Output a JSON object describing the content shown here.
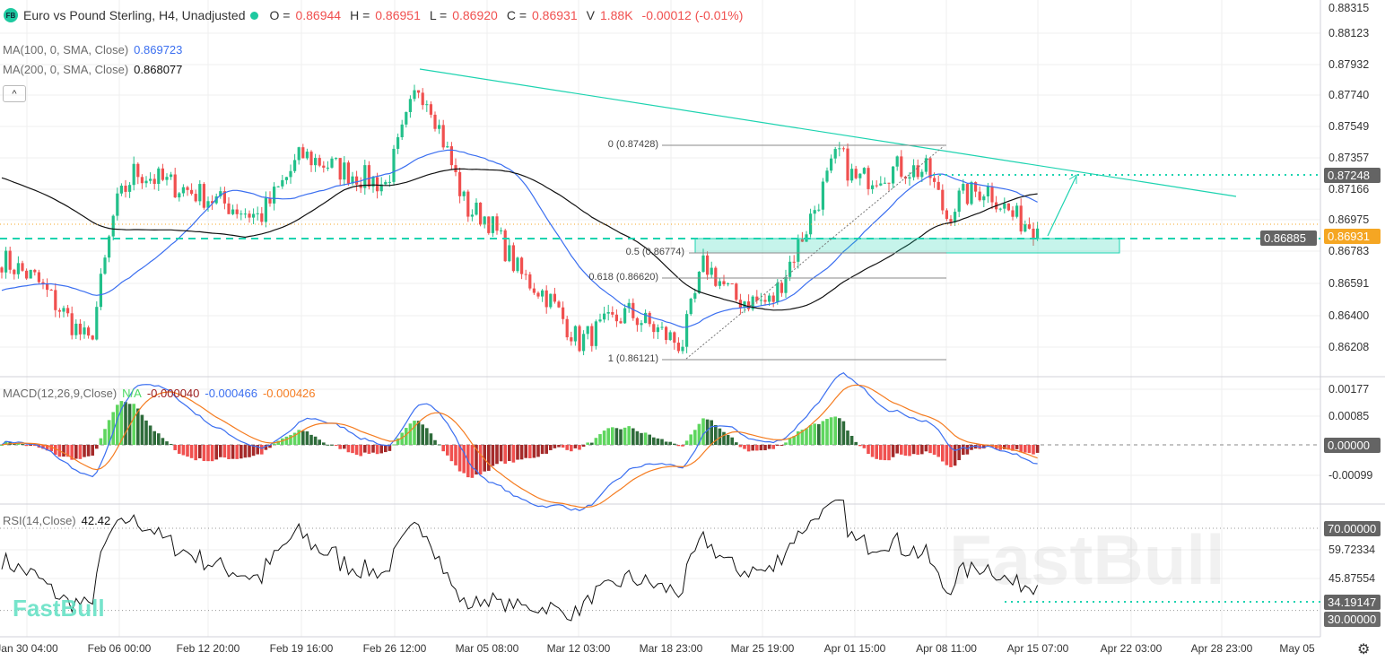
{
  "header": {
    "logo": "FB",
    "title": "Euro vs Pound Sterling, H4, Unadjusted",
    "o_label": "O =",
    "o": "0.86944",
    "h_label": "H =",
    "h": "0.86951",
    "l_label": "L =",
    "l": "0.86920",
    "c_label": "C =",
    "c": "0.86931",
    "v_label": "V",
    "v": "1.88K",
    "change": "-0.00012 (-0.01%)"
  },
  "ma100": {
    "label": "MA(100, 0, SMA, Close)",
    "value": "0.869723",
    "color": "#3b6ff0"
  },
  "ma200": {
    "label": "MA(200, 0, SMA, Close)",
    "value": "0.868077",
    "color": "#111111"
  },
  "collapse_icon": "chevron-up-icon",
  "macd": {
    "label": "MACD(12,26,9,Close)",
    "na": "N/A",
    "hist": "-0.000040",
    "macd": "-0.000466",
    "signal": "-0.000426"
  },
  "rsi": {
    "label": "RSI(14,Close)",
    "value": "42.42"
  },
  "price_axis": [
    "0.88315",
    "0.88123",
    "0.87932",
    "0.87740",
    "0.87549",
    "0.87357",
    "0.87166",
    "0.86975",
    "0.86783",
    "0.86591",
    "0.86400",
    "0.86208"
  ],
  "price_tags": {
    "target": "0.87248",
    "current": "0.86931",
    "level": "0.86885"
  },
  "macd_axis": [
    "0.00177",
    "0.00085",
    "0.00000",
    "-0.00099"
  ],
  "rsi_axis": [
    "70.00000",
    "59.72334",
    "45.87554",
    "34.19147",
    "30.00000"
  ],
  "time_axis": [
    "Jan 30 04:00",
    "Feb 06 00:00",
    "Feb 12 20:00",
    "Feb 19 16:00",
    "Feb 26 12:00",
    "Mar 05 08:00",
    "Mar 12 03:00",
    "Mar 18 23:00",
    "Mar 25 19:00",
    "Apr 01 15:00",
    "Apr 08 11:00",
    "Apr 15 07:00",
    "Apr 22 03:00",
    "Apr 28 23:00",
    "May 05"
  ],
  "fib": [
    {
      "label": "0 (0.87428)"
    },
    {
      "label": "0.5 (0.86774)"
    },
    {
      "label": "0.618 (0.86620)"
    },
    {
      "label": "1 (0.86121)"
    }
  ],
  "watermark": "FastBull",
  "colors": {
    "up": "#22c08a",
    "down": "#f0504f",
    "accent": "#1dd3b0",
    "current": "#f5a623",
    "macd": "#3b6ff0",
    "signal": "#f57c20"
  },
  "chart_data": {
    "type": "candlestick",
    "title": "Euro vs Pound Sterling, H4, Unadjusted",
    "ylim": [
      0.8605,
      0.8835
    ],
    "key_closes": [
      [
        "Jan 30 04:00",
        0.8675
      ],
      [
        "Feb 02",
        0.8662
      ],
      [
        "Feb 04",
        0.8622
      ],
      [
        "Feb 06 00:00",
        0.8705
      ],
      [
        "Feb 07",
        0.8728
      ],
      [
        "Feb 12 20:00",
        0.8712
      ],
      [
        "Feb 16",
        0.87
      ],
      [
        "Feb 19 16:00",
        0.8738
      ],
      [
        "Feb 23",
        0.8725
      ],
      [
        "Feb 25",
        0.872
      ],
      [
        "Feb 26 12:00",
        0.878
      ],
      [
        "Feb 27",
        0.877
      ],
      [
        "Mar 03",
        0.8705
      ],
      [
        "Mar 05 08:00",
        0.87
      ],
      [
        "Mar 07",
        0.8665
      ],
      [
        "Mar 10",
        0.8652
      ],
      [
        "Mar 12 03:00",
        0.8624
      ],
      [
        "Mar 14",
        0.8642
      ],
      [
        "Mar 18 23:00",
        0.8622
      ],
      [
        "Mar 19",
        0.8672
      ],
      [
        "Mar 21",
        0.865
      ],
      [
        "Mar 25 19:00",
        0.8648
      ],
      [
        "Mar 27",
        0.8695
      ],
      [
        "Mar 31",
        0.874
      ],
      [
        "Apr 01 15:00",
        0.8722
      ],
      [
        "Apr 04",
        0.873
      ],
      [
        "Apr 07",
        0.8728
      ],
      [
        "Apr 08 11:00",
        0.87
      ],
      [
        "Apr 09",
        0.8712
      ],
      [
        "Apr 11",
        0.8718
      ],
      [
        "Apr 14",
        0.87
      ],
      [
        "Apr 15 07:00",
        0.86931
      ]
    ],
    "fib_levels": [
      {
        "ratio": 0,
        "price": 0.87428
      },
      {
        "ratio": 0.5,
        "price": 0.86774
      },
      {
        "ratio": 0.618,
        "price": 0.8662
      },
      {
        "ratio": 1,
        "price": 0.86121
      }
    ],
    "horizontal_levels": [
      0.87248,
      0.86885
    ],
    "rsi_levels": [
      70,
      30
    ]
  }
}
